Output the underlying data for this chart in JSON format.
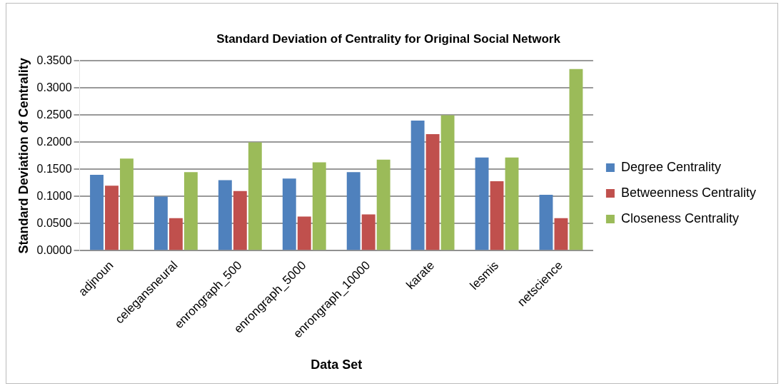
{
  "chart_data": {
    "type": "bar",
    "title": "Standard Deviation of Centrality for Original Social Network",
    "xlabel": "Data Set",
    "ylabel": "Standard Deviation of Centrality",
    "categories": [
      "adjnoun",
      "celegansneural",
      "enrongraph_500",
      "enrongraph_5000",
      "enrongraph_10000",
      "karate",
      "lesmis",
      "netscience"
    ],
    "series": [
      {
        "name": "Degree Centrality",
        "color": "#4f81bd",
        "values": [
          0.14,
          0.1,
          0.13,
          0.133,
          0.145,
          0.24,
          0.172,
          0.103
        ]
      },
      {
        "name": "Betweenness Centrality",
        "color": "#c0504d",
        "values": [
          0.12,
          0.06,
          0.11,
          0.063,
          0.067,
          0.215,
          0.128,
          0.06
        ]
      },
      {
        "name": "Closeness Centrality",
        "color": "#9bbb59",
        "values": [
          0.17,
          0.145,
          0.2,
          0.163,
          0.168,
          0.25,
          0.172,
          0.335
        ]
      }
    ],
    "ylim": [
      0,
      0.35
    ],
    "yticks": [
      {
        "value": 0,
        "label": "0.0000"
      },
      {
        "value": 0.05,
        "label": "0.0500"
      },
      {
        "value": 0.1,
        "label": "0.1000"
      },
      {
        "value": 0.15,
        "label": "0.1500"
      },
      {
        "value": 0.2,
        "label": "0.2000"
      },
      {
        "value": 0.25,
        "label": "0.2500"
      },
      {
        "value": 0.3,
        "label": "0.3000"
      },
      {
        "value": 0.35,
        "label": "0.3500"
      }
    ],
    "grid": "y",
    "legend": "right"
  }
}
